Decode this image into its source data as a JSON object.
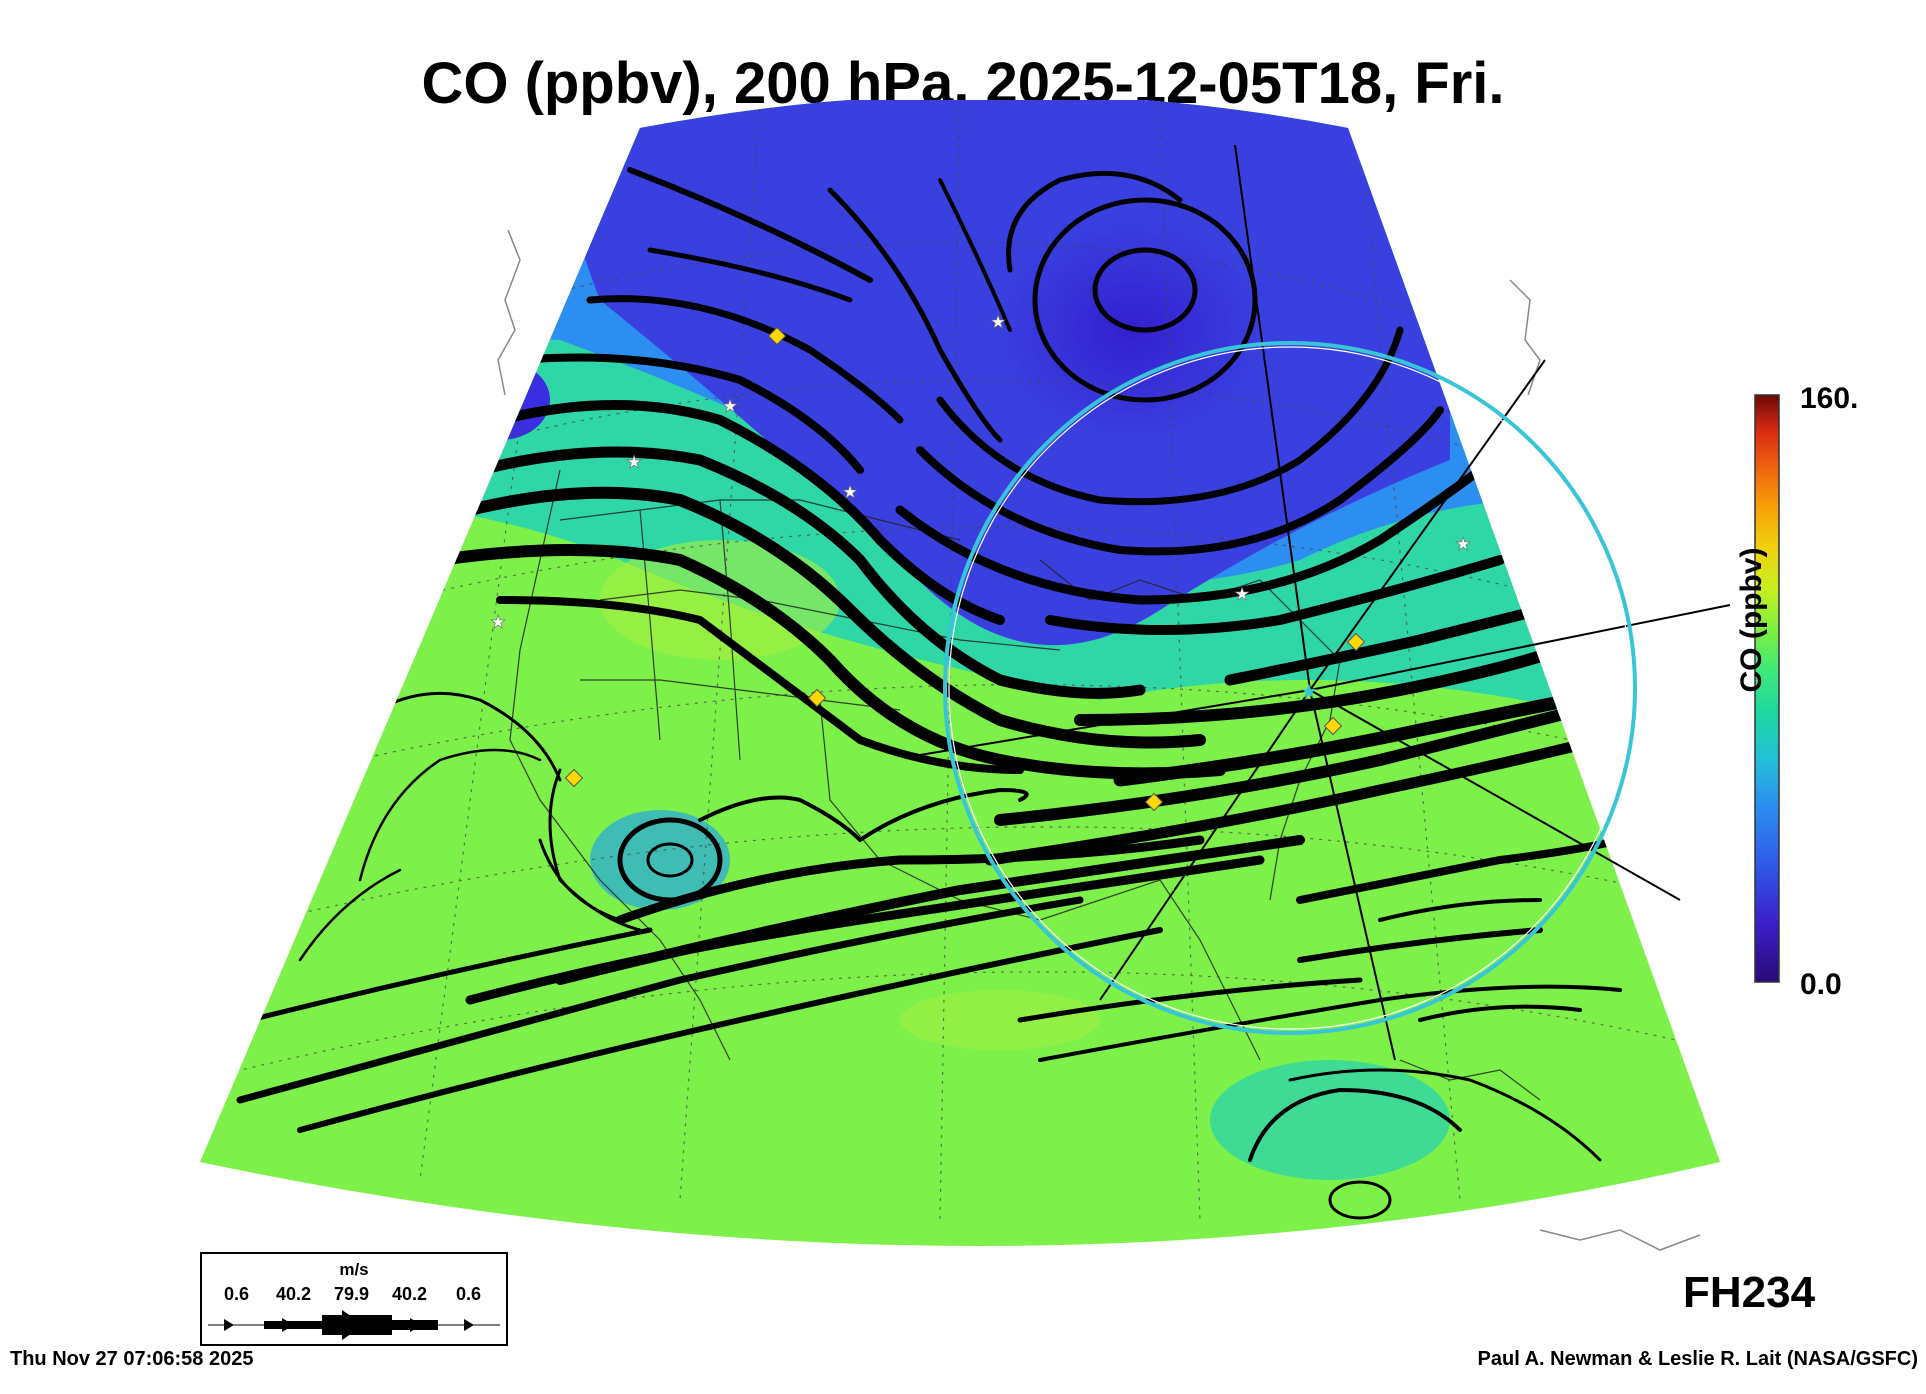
{
  "title": "CO (ppbv), 200 hPa, 2025-12-05T18, Fri.",
  "colorbar": {
    "max_label": "160.",
    "min_label": "0.0",
    "label": "CO (ppbv)",
    "range": [
      0,
      160
    ],
    "colors": [
      "#2a0a78",
      "#3b1fc8",
      "#2f5ae8",
      "#2b8ef0",
      "#22c0d8",
      "#1ed8a0",
      "#3fe87a",
      "#7cf040",
      "#c8f020",
      "#f0d010",
      "#f7a008",
      "#ee6010",
      "#d82a10",
      "#a01008",
      "#6a0808"
    ]
  },
  "wind_legend": {
    "unit": "m/s",
    "values": [
      "0.6",
      "40.2",
      "79.9",
      "40.2",
      "0.6"
    ]
  },
  "forecast_hour": "FH234",
  "timestamp": "Thu Nov 27 07:06:58 2025",
  "credit": "Paul A. Newman & Leslie R. Lait (NASA/GSFC)",
  "field_colors": {
    "low": "#3a40e0",
    "mid": "#2fd6a6",
    "high": "#7ef04a"
  },
  "markers": {
    "diamond_color": "#ffd700",
    "star_color": "#ffffff",
    "circle_color": "#39c5d8"
  }
}
